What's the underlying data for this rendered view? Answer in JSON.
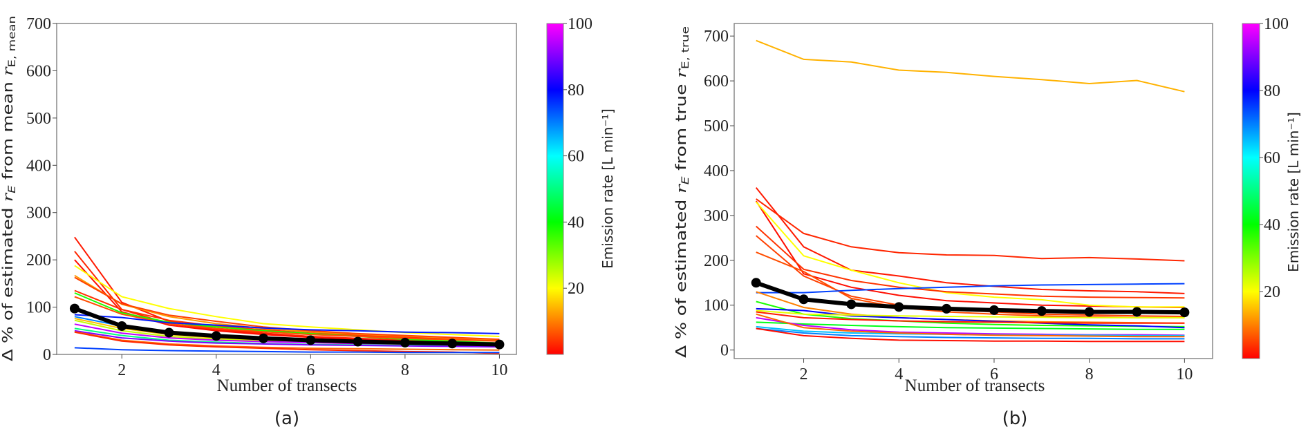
{
  "chart_data": [
    {
      "type": "line",
      "panel_label": "(a)",
      "xlabel": "Number of transects",
      "ylabel": {
        "prefix": "Δ % of estimated ",
        "var": "r",
        "var_sub": "E",
        "mid": " from mean ",
        "ref": "r",
        "ref_sub": "E, mean"
      },
      "xlim": [
        0.62,
        10.36
      ],
      "ylim": [
        0,
        700
      ],
      "xticks": [
        2,
        4,
        6,
        8,
        10
      ],
      "yticks": [
        0,
        100,
        200,
        300,
        400,
        500,
        600,
        700
      ],
      "grid": false,
      "x": [
        1,
        2,
        3,
        4,
        5,
        6,
        7,
        8,
        9,
        10
      ],
      "colorbar": {
        "label": "Emission rate [L min⁻¹]",
        "range": [
          0,
          100
        ],
        "ticks": [
          20,
          40,
          60,
          80,
          100
        ],
        "colormap": "red-yellow-green-cyan-blue-magenta"
      },
      "mean_series": {
        "color": "#000000",
        "values": [
          97,
          60,
          46,
          39,
          34,
          30,
          27,
          25,
          23,
          21
        ]
      },
      "series": [
        {
          "emission_rate": 2,
          "values": [
            248,
            110,
            70,
            55,
            45,
            38,
            33,
            29,
            26,
            22
          ]
        },
        {
          "emission_rate": 3,
          "values": [
            218,
            95,
            65,
            52,
            44,
            38,
            34,
            30,
            27,
            24
          ]
        },
        {
          "emission_rate": 1,
          "values": [
            200,
            90,
            62,
            50,
            42,
            36,
            32,
            28,
            25,
            22
          ]
        },
        {
          "emission_rate": 20,
          "values": [
            188,
            122,
            97,
            80,
            65,
            58,
            52,
            46,
            42,
            38
          ]
        },
        {
          "emission_rate": 12,
          "values": [
            167,
            106,
            80,
            65,
            55,
            48,
            42,
            38,
            34,
            30
          ]
        },
        {
          "emission_rate": 5,
          "values": [
            163,
            107,
            83,
            70,
            58,
            50,
            44,
            40,
            36,
            32
          ]
        },
        {
          "emission_rate": 4,
          "values": [
            135,
            95,
            72,
            60,
            52,
            45,
            40,
            36,
            32,
            28
          ]
        },
        {
          "emission_rate": 38,
          "values": [
            130,
            88,
            68,
            58,
            50,
            44,
            38,
            32,
            28,
            24
          ]
        },
        {
          "emission_rate": 6,
          "values": [
            122,
            85,
            65,
            55,
            48,
            42,
            38,
            34,
            31,
            28
          ]
        },
        {
          "emission_rate": 78,
          "values": [
            84,
            78,
            67,
            62,
            56,
            52,
            50,
            47,
            46,
            44
          ]
        },
        {
          "emission_rate": 70,
          "values": [
            80,
            60,
            45,
            38,
            33,
            30,
            28,
            26,
            25,
            24
          ]
        },
        {
          "emission_rate": 15,
          "values": [
            76,
            55,
            42,
            35,
            30,
            27,
            25,
            23,
            22,
            20
          ]
        },
        {
          "emission_rate": 25,
          "values": [
            72,
            50,
            38,
            32,
            28,
            25,
            23,
            21,
            20,
            19
          ]
        },
        {
          "emission_rate": 50,
          "values": [
            55,
            40,
            30,
            26,
            23,
            21,
            20,
            19,
            18,
            17
          ]
        },
        {
          "emission_rate": 95,
          "values": [
            64,
            45,
            35,
            30,
            27,
            25,
            23,
            22,
            21,
            20
          ]
        },
        {
          "emission_rate": 90,
          "values": [
            50,
            35,
            28,
            24,
            22,
            20,
            19,
            18,
            17,
            16
          ]
        },
        {
          "emission_rate": 8,
          "values": [
            48,
            30,
            22,
            18,
            15,
            13,
            12,
            11,
            10,
            9
          ]
        },
        {
          "emission_rate": 3,
          "values": [
            47,
            28,
            20,
            16,
            13,
            10,
            8,
            6,
            5,
            2
          ]
        },
        {
          "emission_rate": 75,
          "values": [
            14,
            10,
            8,
            7,
            6,
            5,
            5,
            4,
            4,
            4
          ]
        }
      ]
    },
    {
      "type": "line",
      "panel_label": "(b)",
      "xlabel": "Number of transects",
      "ylabel": {
        "prefix": "Δ % of estimated ",
        "var": "r",
        "var_sub": "E",
        "mid": " from true ",
        "ref": "r",
        "ref_sub": "E, true"
      },
      "xlim": [
        0.54,
        10.59
      ],
      "ylim": [
        -19,
        728
      ],
      "xticks": [
        2,
        4,
        6,
        8,
        10
      ],
      "yticks": [
        0,
        100,
        200,
        300,
        400,
        500,
        600,
        700
      ],
      "grid": false,
      "x": [
        1,
        2,
        3,
        4,
        5,
        6,
        7,
        8,
        9,
        10
      ],
      "colorbar": {
        "label": "Emission rate [L min⁻¹]",
        "range": [
          0,
          100
        ],
        "ticks": [
          20,
          40,
          60,
          80,
          100
        ],
        "colormap": "red-yellow-green-cyan-blue-magenta"
      },
      "mean_series": {
        "color": "#000000",
        "values": [
          150,
          113,
          102,
          96,
          92,
          89,
          87,
          85,
          85,
          84
        ]
      },
      "series": [
        {
          "emission_rate": 14,
          "values": [
            690,
            648,
            642,
            624,
            619,
            610,
            603,
            594,
            601,
            576
          ]
        },
        {
          "emission_rate": 2,
          "values": [
            362,
            230,
            178,
            165,
            150,
            142,
            135,
            132,
            130,
            126
          ]
        },
        {
          "emission_rate": 3,
          "values": [
            337,
            260,
            230,
            217,
            212,
            211,
            204,
            206,
            203,
            199
          ]
        },
        {
          "emission_rate": 1,
          "values": [
            332,
            170,
            140,
            122,
            110,
            105,
            100,
            98,
            96,
            95
          ]
        },
        {
          "emission_rate": 20,
          "values": [
            330,
            210,
            178,
            150,
            128,
            118,
            112,
            100,
            96,
            96
          ]
        },
        {
          "emission_rate": 4,
          "values": [
            276,
            180,
            155,
            140,
            130,
            125,
            120,
            118,
            117,
            116
          ]
        },
        {
          "emission_rate": 5,
          "values": [
            255,
            165,
            120,
            100,
            90,
            85,
            80,
            78,
            76,
            75
          ]
        },
        {
          "emission_rate": 6,
          "values": [
            218,
            175,
            115,
            95,
            85,
            80,
            76,
            74,
            72,
            72
          ]
        },
        {
          "emission_rate": 75,
          "values": [
            128,
            128,
            133,
            137,
            140,
            143,
            145,
            146,
            147,
            148
          ]
        },
        {
          "emission_rate": 10,
          "values": [
            130,
            95,
            80,
            72,
            68,
            65,
            63,
            62,
            61,
            60
          ]
        },
        {
          "emission_rate": 38,
          "values": [
            108,
            80,
            70,
            65,
            60,
            57,
            55,
            54,
            53,
            52
          ]
        },
        {
          "emission_rate": 80,
          "values": [
            92,
            88,
            76,
            72,
            68,
            64,
            60,
            56,
            54,
            50
          ]
        },
        {
          "emission_rate": 22,
          "values": [
            88,
            80,
            78,
            76,
            75,
            74,
            73,
            72,
            72,
            72
          ]
        },
        {
          "emission_rate": 2,
          "values": [
            85,
            72,
            68,
            65,
            63,
            62,
            61,
            60,
            60,
            60
          ]
        },
        {
          "emission_rate": 42,
          "values": [
            62,
            58,
            55,
            52,
            50,
            49,
            48,
            47,
            46,
            46
          ]
        },
        {
          "emission_rate": 95,
          "values": [
            72,
            55,
            45,
            40,
            38,
            36,
            35,
            34,
            34,
            33
          ]
        },
        {
          "emission_rate": 65,
          "values": [
            52,
            42,
            38,
            36,
            35,
            34,
            33,
            33,
            32,
            32
          ]
        },
        {
          "emission_rate": 8,
          "values": [
            80,
            50,
            42,
            38,
            35,
            33,
            32,
            31,
            30,
            30
          ]
        },
        {
          "emission_rate": 70,
          "values": [
            48,
            38,
            32,
            30,
            28,
            27,
            26,
            26,
            25,
            25
          ]
        },
        {
          "emission_rate": 1,
          "values": [
            48,
            32,
            26,
            22,
            21,
            20,
            20,
            19,
            19,
            19
          ]
        }
      ]
    }
  ]
}
